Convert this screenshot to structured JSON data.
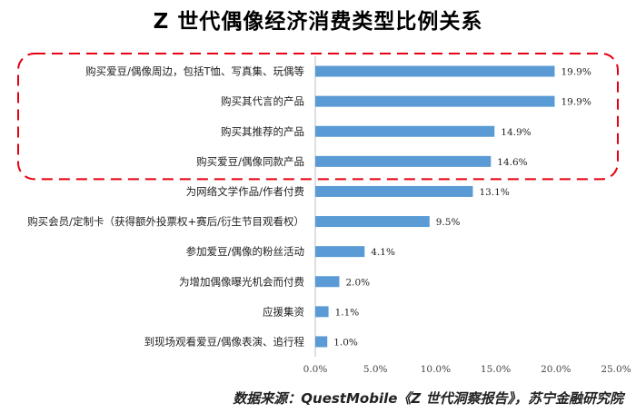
{
  "chart_data": {
    "type": "bar",
    "orientation": "horizontal",
    "title": "Z 世代偶像经济消费类型比例关系",
    "categories": [
      "购买爱豆/偶像周边，包括T恤、写真集、玩偶等",
      "购买其代言的产品",
      "购买其推荐的产品",
      "购买爱豆/偶像同款产品",
      "为网络文学作品/作者付费",
      "购买会员/定制卡（获得额外投票权+赛后/衍生节目观看权）",
      "参加爱豆/偶像的粉丝活动",
      "为增加偶像曝光机会而付费",
      "应援集资",
      "到现场观看爱豆/偶像表演、追行程"
    ],
    "values": [
      19.9,
      19.9,
      14.9,
      14.6,
      13.1,
      9.5,
      4.1,
      2.0,
      1.1,
      1.0
    ],
    "value_labels": [
      "19.9%",
      "19.9%",
      "14.9%",
      "14.6%",
      "13.1%",
      "9.5%",
      "4.1%",
      "2.0%",
      "1.1%",
      "1.0%"
    ],
    "xlim": [
      0,
      25
    ],
    "x_ticks": [
      "0.0%",
      "5.0%",
      "10.0%",
      "15.0%",
      "20.0%",
      "25.0%"
    ],
    "highlighted_categories": 4,
    "bar_color": "#5b9bd5",
    "highlight_color": "#e60012",
    "grid": false
  },
  "source": "数据来源：QuestMobile《Z 世代洞察报告》，苏宁金融研究院"
}
